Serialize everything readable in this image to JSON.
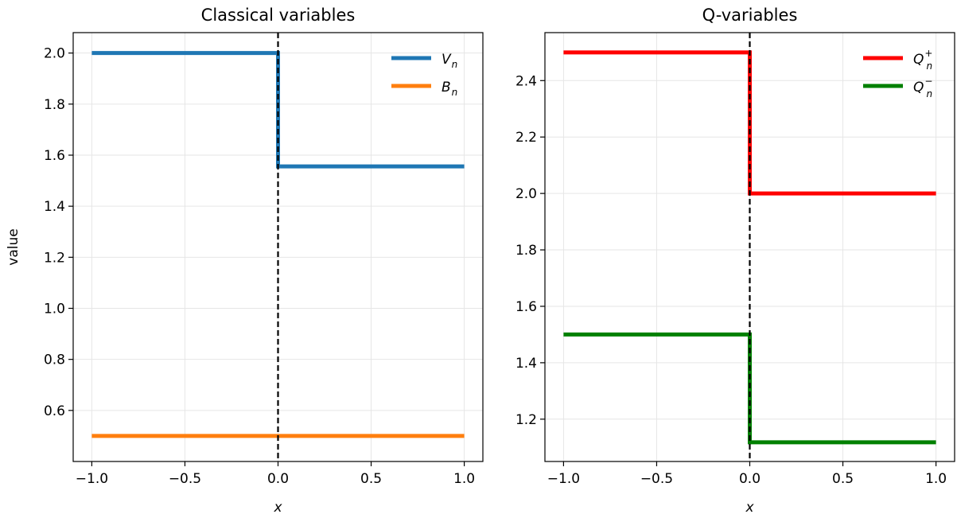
{
  "chart_data": [
    {
      "type": "line",
      "title": "Classical variables",
      "xlabel": "x",
      "ylabel": "value",
      "xlim": [
        -1.1,
        1.1
      ],
      "ylim": [
        0.4,
        2.08
      ],
      "xticks": [
        -1.0,
        -0.5,
        0.0,
        0.5,
        1.0
      ],
      "xtick_labels": [
        "−1.0",
        "−0.5",
        "0.0",
        "0.5",
        "1.0"
      ],
      "yticks": [
        0.6,
        0.8,
        1.0,
        1.2,
        1.4,
        1.6,
        1.8,
        2.0
      ],
      "ytick_labels": [
        "0.6",
        "0.8",
        "1.0",
        "1.2",
        "1.4",
        "1.6",
        "1.8",
        "2.0"
      ],
      "grid": true,
      "legend_position": "top-right",
      "discontinuity_x": 0.0,
      "series": [
        {
          "name": "V",
          "sub": "n",
          "sup": "",
          "color": "#1f77b4",
          "points": [
            [
              -1.0,
              2.0
            ],
            [
              0.0,
              2.0
            ],
            [
              0.0,
              1.556
            ],
            [
              1.0,
              1.556
            ]
          ]
        },
        {
          "name": "B",
          "sub": "n",
          "sup": "",
          "color": "#ff7f0e",
          "points": [
            [
              -1.0,
              0.5
            ],
            [
              0.0,
              0.5
            ],
            [
              1.0,
              0.5
            ]
          ]
        }
      ]
    },
    {
      "type": "line",
      "title": "Q-variables",
      "xlabel": "x",
      "ylabel": "",
      "xlim": [
        -1.1,
        1.1
      ],
      "ylim": [
        1.05,
        2.57
      ],
      "xticks": [
        -1.0,
        -0.5,
        0.0,
        0.5,
        1.0
      ],
      "xtick_labels": [
        "−1.0",
        "−0.5",
        "0.0",
        "0.5",
        "1.0"
      ],
      "yticks": [
        1.2,
        1.4,
        1.6,
        1.8,
        2.0,
        2.2,
        2.4
      ],
      "ytick_labels": [
        "1.2",
        "1.4",
        "1.6",
        "1.8",
        "2.0",
        "2.2",
        "2.4"
      ],
      "grid": true,
      "legend_position": "top-right",
      "discontinuity_x": 0.0,
      "series": [
        {
          "name": "Q",
          "sub": "n",
          "sup": "+",
          "color": "#ff0000",
          "points": [
            [
              -1.0,
              2.5
            ],
            [
              0.0,
              2.5
            ],
            [
              0.0,
              2.0
            ],
            [
              1.0,
              2.0
            ]
          ]
        },
        {
          "name": "Q",
          "sub": "n",
          "sup": "−",
          "color": "#008000",
          "points": [
            [
              -1.0,
              1.5
            ],
            [
              0.0,
              1.5
            ],
            [
              0.0,
              1.118
            ],
            [
              1.0,
              1.118
            ]
          ]
        }
      ]
    }
  ]
}
